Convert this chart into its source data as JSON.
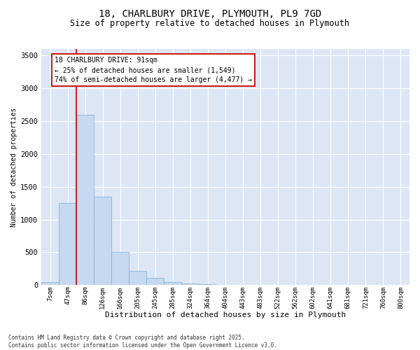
{
  "title_line1": "18, CHARLBURY DRIVE, PLYMOUTH, PL9 7GD",
  "title_line2": "Size of property relative to detached houses in Plymouth",
  "xlabel": "Distribution of detached houses by size in Plymouth",
  "ylabel": "Number of detached properties",
  "categories": [
    "7sqm",
    "47sqm",
    "86sqm",
    "126sqm",
    "166sqm",
    "205sqm",
    "245sqm",
    "285sqm",
    "324sqm",
    "364sqm",
    "404sqm",
    "443sqm",
    "483sqm",
    "522sqm",
    "562sqm",
    "602sqm",
    "641sqm",
    "681sqm",
    "721sqm",
    "760sqm",
    "800sqm"
  ],
  "values": [
    50,
    1250,
    2600,
    1350,
    500,
    220,
    110,
    50,
    20,
    8,
    3,
    1,
    0,
    0,
    0,
    0,
    0,
    0,
    0,
    0,
    0
  ],
  "bar_color": "#c6d9f0",
  "bar_edge_color": "#7bafd4",
  "bg_color": "#dce6f5",
  "grid_color": "#ffffff",
  "vline_color": "#cc0000",
  "annotation_text": "18 CHARLBURY DRIVE: 91sqm\n← 25% of detached houses are smaller (1,549)\n74% of semi-detached houses are larger (4,477) →",
  "footnote": "Contains HM Land Registry data © Crown copyright and database right 2025.\nContains public sector information licensed under the Open Government Licence v3.0.",
  "ylim": [
    0,
    3600
  ],
  "yticks": [
    0,
    500,
    1000,
    1500,
    2000,
    2500,
    3000,
    3500
  ]
}
